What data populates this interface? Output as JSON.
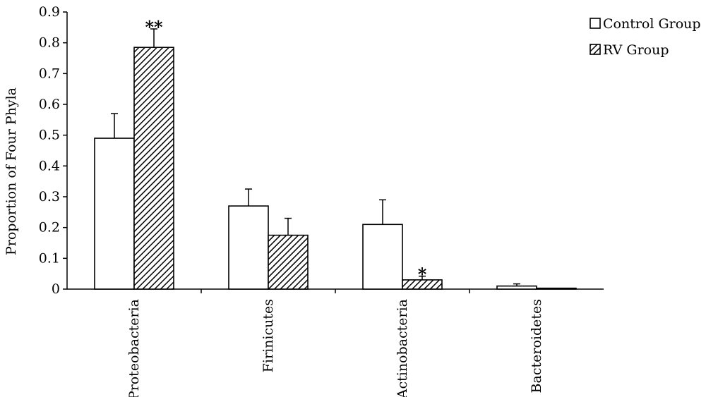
{
  "chart_data": {
    "type": "bar",
    "title": "",
    "xlabel": "",
    "ylabel": "Proportion of Four Phyla",
    "ylim": [
      0,
      0.9
    ],
    "yticks": [
      "0",
      "0.1",
      "0.2",
      "0.3",
      "0.4",
      "0.5",
      "0.6",
      "0.7",
      "0.8",
      "0.9"
    ],
    "categories": [
      "Proteobacteria",
      "Firinicutes",
      "Actinobacteria",
      "Bacteroidetes"
    ],
    "series": [
      {
        "name": "Control Group",
        "values": [
          0.49,
          0.27,
          0.21,
          0.01
        ],
        "errors": [
          0.08,
          0.055,
          0.08,
          0.007
        ],
        "fill": "plain"
      },
      {
        "name": "RV Group",
        "values": [
          0.785,
          0.175,
          0.03,
          0.003
        ],
        "errors": [
          0.06,
          0.055,
          0.012,
          0.0
        ],
        "fill": "hatched"
      }
    ],
    "annotations": [
      {
        "category": "Proteobacteria",
        "series": "RV Group",
        "text": "**"
      },
      {
        "category": "Actinobacteria",
        "series": "RV Group",
        "text": "*"
      }
    ],
    "legend": {
      "position": "top-right"
    },
    "grid": false,
    "colors": {
      "bar_stroke": "#000000",
      "bar_fill": "#ffffff",
      "hatch": "#000000"
    }
  }
}
